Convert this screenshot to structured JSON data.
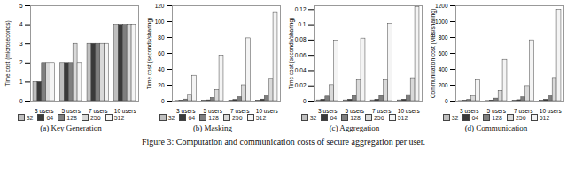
{
  "chart_data": [
    {
      "type": "bar",
      "title": "(a) Key Generation",
      "y_label": "Time cost (microseconds)",
      "categories": [
        "3 users",
        "5 users",
        "7 users",
        "10 users"
      ],
      "series": [
        {
          "name": "32",
          "color": "#bfbfbf",
          "values": [
            1,
            2,
            3,
            4
          ]
        },
        {
          "name": "64",
          "color": "#3a3a3a",
          "values": [
            1,
            2,
            3,
            4
          ]
        },
        {
          "name": "128",
          "color": "#7f7f7f",
          "values": [
            2,
            2,
            3,
            4
          ]
        },
        {
          "name": "256",
          "color": "#d9d9d9",
          "values": [
            2,
            3,
            3,
            4
          ]
        },
        {
          "name": "512",
          "color": "#f4f4f4",
          "values": [
            2,
            2,
            3,
            4
          ]
        }
      ],
      "ylim": [
        0,
        5
      ],
      "yticks": [
        0,
        1,
        2,
        3,
        4,
        5
      ],
      "grid": false,
      "legend": "bottom"
    },
    {
      "type": "bar",
      "title": "(b) Masking",
      "y_label": "Time cost (seconds/sharing)",
      "categories": [
        "3 users",
        "5 users",
        "7 users",
        "10 users"
      ],
      "series": [
        {
          "name": "32",
          "color": "#bfbfbf",
          "values": [
            0.2,
            0.3,
            0.5,
            0.7
          ]
        },
        {
          "name": "64",
          "color": "#3a3a3a",
          "values": [
            0.5,
            1,
            1.5,
            2
          ]
        },
        {
          "name": "128",
          "color": "#7f7f7f",
          "values": [
            2,
            4,
            5,
            7
          ]
        },
        {
          "name": "256",
          "color": "#d9d9d9",
          "values": [
            8,
            14,
            20,
            28
          ]
        },
        {
          "name": "512",
          "color": "#f4f4f4",
          "values": [
            32,
            57,
            79,
            111
          ]
        }
      ],
      "ylim": [
        0,
        120
      ],
      "yticks": [
        0,
        20,
        40,
        60,
        80,
        100,
        120
      ],
      "grid": false,
      "legend": "bottom"
    },
    {
      "type": "bar",
      "title": "(c) Aggregation",
      "y_label": "Time cost (seconds/sharing)",
      "categories": [
        "3 users",
        "5 users",
        "7 users",
        "10 users"
      ],
      "series": [
        {
          "name": "32",
          "color": "#bfbfbf",
          "values": [
            0.001,
            0.001,
            0.001,
            0.001
          ]
        },
        {
          "name": "64",
          "color": "#3a3a3a",
          "values": [
            0.002,
            0.002,
            0.002,
            0.002
          ]
        },
        {
          "name": "128",
          "color": "#7f7f7f",
          "values": [
            0.006,
            0.007,
            0.007,
            0.008
          ]
        },
        {
          "name": "256",
          "color": "#d9d9d9",
          "values": [
            0.021,
            0.027,
            0.027,
            0.03
          ]
        },
        {
          "name": "512",
          "color": "#f4f4f4",
          "values": [
            0.079,
            0.082,
            0.101,
            0.123
          ]
        }
      ],
      "ylim": [
        0,
        0.125
      ],
      "yticks": [
        0,
        0.02,
        0.04,
        0.06,
        0.08,
        0.1,
        0.12
      ],
      "grid": false,
      "legend": "bottom"
    },
    {
      "type": "bar",
      "title": "(d) Communication",
      "y_label": "Communication cost (MBs/sharing)",
      "categories": [
        "3 users",
        "5 users",
        "7 users",
        "10 users"
      ],
      "series": [
        {
          "name": "32",
          "color": "#bfbfbf",
          "values": [
            1,
            2,
            3,
            4
          ]
        },
        {
          "name": "64",
          "color": "#3a3a3a",
          "values": [
            4,
            8,
            12,
            18
          ]
        },
        {
          "name": "128",
          "color": "#7f7f7f",
          "values": [
            16,
            32,
            48,
            72
          ]
        },
        {
          "name": "256",
          "color": "#d9d9d9",
          "values": [
            65,
            130,
            190,
            290
          ]
        },
        {
          "name": "512",
          "color": "#f4f4f4",
          "values": [
            260,
            520,
            765,
            1150
          ]
        }
      ],
      "ylim": [
        0,
        1200
      ],
      "yticks": [
        0,
        200,
        400,
        600,
        800,
        1000,
        1200
      ],
      "grid": false,
      "legend": "bottom"
    }
  ],
  "caption": "Figure 3: Computation and communication costs of secure aggregation per user."
}
